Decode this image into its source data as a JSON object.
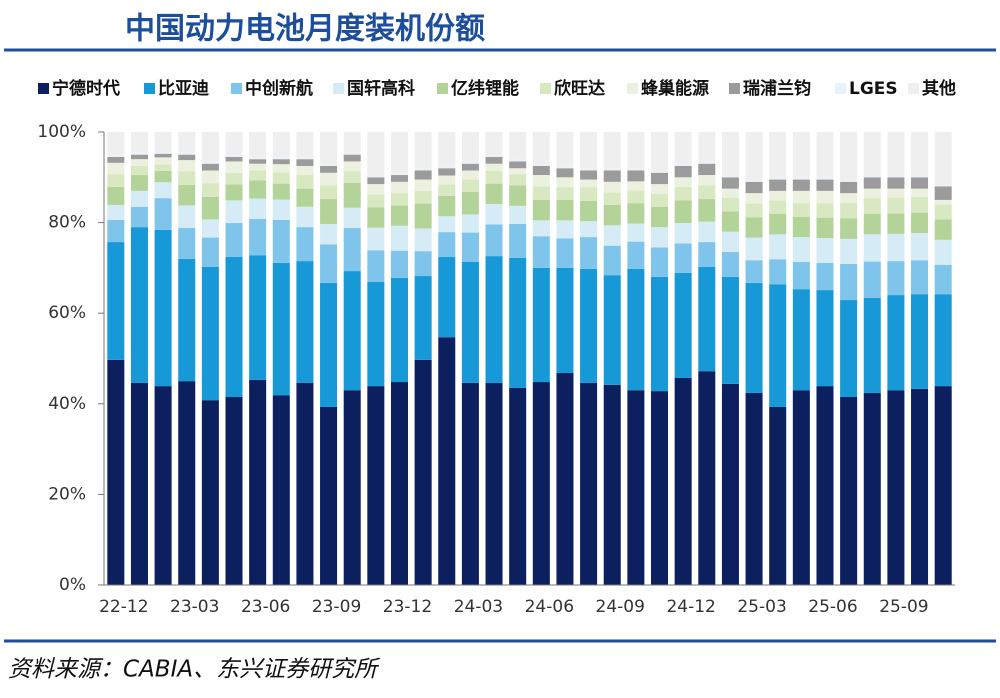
{
  "chart_data": {
    "type": "stacked_bar",
    "title": "中国动力电池月度装机份额",
    "source": "资料来源：CABIA、东兴证券研究所",
    "categories": [
      "22-12",
      null,
      null,
      "23-03",
      null,
      null,
      "23-06",
      null,
      null,
      "23-09",
      null,
      null,
      "23-12",
      null,
      null,
      "24-03",
      null,
      null,
      "24-06",
      null,
      null,
      "24-09",
      null,
      null,
      "24-12",
      null,
      null,
      "25-03",
      null,
      null,
      "25-06",
      null,
      null,
      "25-09",
      null,
      null
    ],
    "ylim": [
      0,
      100
    ],
    "yticks": [
      {
        "value": 0,
        "label": "0%"
      },
      {
        "value": 20,
        "label": "20%"
      },
      {
        "value": 40,
        "label": "40%"
      },
      {
        "value": 60,
        "label": "60%"
      },
      {
        "value": 80,
        "label": "80%"
      },
      {
        "value": 100,
        "label": "100%"
      }
    ],
    "series": [
      {
        "name": "宁德时代",
        "color": "#0c1f5e",
        "values": [
          49.7,
          44.6,
          43.9,
          45.0,
          40.8,
          41.5,
          45.3,
          41.9,
          44.6,
          39.3,
          43.0,
          43.9,
          44.8,
          49.7,
          54.7,
          44.6,
          44.6,
          43.5,
          44.8,
          46.8,
          44.6,
          44.2,
          43.0,
          42.8,
          45.7,
          47.2,
          44.4,
          42.4,
          39.3,
          43.0,
          43.9,
          41.5,
          42.4,
          43.0,
          43.3,
          43.9
        ]
      },
      {
        "name": "比亚迪",
        "color": "#1699d6",
        "values": [
          26.0,
          34.4,
          34.5,
          27.0,
          29.4,
          30.9,
          27.5,
          29.2,
          26.9,
          27.4,
          26.3,
          23.0,
          23.0,
          18.5,
          17.7,
          26.7,
          28.0,
          28.7,
          25.2,
          23.2,
          25.2,
          24.2,
          26.8,
          25.2,
          23.2,
          23.0,
          23.6,
          24.3,
          27.1,
          22.3,
          21.2,
          21.4,
          21.0,
          21.0,
          20.9,
          20.3
        ]
      },
      {
        "name": "中创新航",
        "color": "#7fc4ea",
        "values": [
          4.9,
          4.5,
          7.0,
          6.8,
          6.5,
          7.5,
          8.0,
          9.5,
          7.5,
          8.5,
          9.5,
          7.0,
          6.0,
          5.5,
          5.5,
          6.5,
          7.0,
          7.5,
          7.0,
          6.5,
          7.0,
          6.5,
          6.0,
          6.5,
          6.5,
          5.5,
          5.5,
          5.0,
          5.5,
          6.0,
          6.0,
          8.0,
          8.0,
          7.5,
          7.5,
          6.5
        ]
      },
      {
        "name": "国轩高科",
        "color": "#d5ecf7",
        "values": [
          3.3,
          3.5,
          3.5,
          5.0,
          4.0,
          5.0,
          4.5,
          4.5,
          4.5,
          4.5,
          4.5,
          5.0,
          5.5,
          5.0,
          3.5,
          4.0,
          4.5,
          4.0,
          3.5,
          4.0,
          3.5,
          4.5,
          4.0,
          4.5,
          4.5,
          4.5,
          4.5,
          5.0,
          5.5,
          5.5,
          5.5,
          5.5,
          6.0,
          6.0,
          6.0,
          5.5
        ]
      },
      {
        "name": "亿纬锂能",
        "color": "#b4d399",
        "values": [
          4.0,
          3.5,
          2.5,
          4.5,
          5.0,
          3.5,
          4.0,
          3.5,
          4.0,
          5.5,
          5.5,
          4.5,
          4.5,
          5.5,
          4.5,
          5.0,
          4.5,
          4.5,
          4.5,
          4.5,
          4.5,
          4.5,
          4.5,
          4.5,
          5.0,
          5.0,
          4.5,
          4.5,
          4.5,
          4.5,
          4.5,
          4.5,
          4.5,
          4.5,
          4.5,
          4.5
        ]
      },
      {
        "name": "欣旺达",
        "color": "#d8e8c0",
        "values": [
          2.8,
          2.0,
          1.5,
          3.0,
          3.0,
          2.6,
          2.2,
          2.5,
          3.0,
          3.0,
          2.5,
          2.8,
          2.7,
          2.8,
          2.5,
          2.7,
          2.8,
          2.5,
          3.0,
          2.8,
          3.0,
          2.8,
          2.8,
          2.8,
          3.0,
          3.0,
          3.0,
          3.0,
          3.0,
          3.0,
          3.2,
          3.5,
          3.5,
          3.5,
          3.5,
          3.3
        ]
      },
      {
        "name": "蜂巢能源",
        "color": "#ecf1df",
        "values": [
          2.5,
          1.5,
          1.5,
          2.5,
          2.8,
          2.5,
          1.5,
          1.8,
          2.0,
          2.8,
          2.2,
          2.3,
          2.5,
          2.5,
          2.0,
          2.0,
          1.6,
          1.3,
          2.5,
          2.2,
          1.7,
          2.3,
          2.0,
          2.2,
          2.1,
          2.3,
          2.0,
          2.3,
          2.1,
          2.7,
          2.7,
          2.1,
          2.1,
          2.0,
          1.8,
          1.0
        ]
      },
      {
        "name": "瑞浦兰钧",
        "color": "#9b9b9b",
        "values": [
          1.3,
          1.0,
          0.8,
          1.2,
          1.5,
          1.0,
          1.0,
          1.1,
          1.5,
          1.5,
          1.5,
          1.5,
          1.5,
          2.0,
          1.6,
          1.5,
          1.5,
          1.5,
          2.0,
          2.0,
          2.0,
          2.5,
          2.4,
          2.5,
          2.5,
          2.5,
          2.5,
          2.5,
          2.5,
          2.5,
          2.5,
          2.5,
          2.5,
          2.5,
          2.5,
          3.0
        ]
      },
      {
        "name": "LGES",
        "color": "#eaf2f9",
        "values": [
          0.4,
          0.4,
          0.4,
          0.4,
          0.4,
          0.4,
          0.4,
          0.4,
          0.4,
          0.4,
          0.4,
          0.4,
          0.4,
          0.4,
          0.4,
          0.4,
          0.4,
          0.4,
          0.4,
          0.4,
          0.4,
          0.4,
          0.4,
          0.4,
          0.4,
          0.4,
          0.4,
          0.4,
          0.4,
          0.4,
          0.4,
          0.4,
          0.4,
          0.4,
          0.4,
          0.4
        ]
      },
      {
        "name": "其他",
        "color": "#efefef",
        "values": [
          5.1,
          4.6,
          4.4,
          4.6,
          6.6,
          5.1,
          5.6,
          5.6,
          5.6,
          7.1,
          4.6,
          9.6,
          9.1,
          8.1,
          7.6,
          6.6,
          5.1,
          6.1,
          7.1,
          7.6,
          8.1,
          8.1,
          8.1,
          8.6,
          7.1,
          6.6,
          9.6,
          10.6,
          10.1,
          10.1,
          10.1,
          10.6,
          9.6,
          9.6,
          9.6,
          11.6
        ]
      }
    ]
  }
}
